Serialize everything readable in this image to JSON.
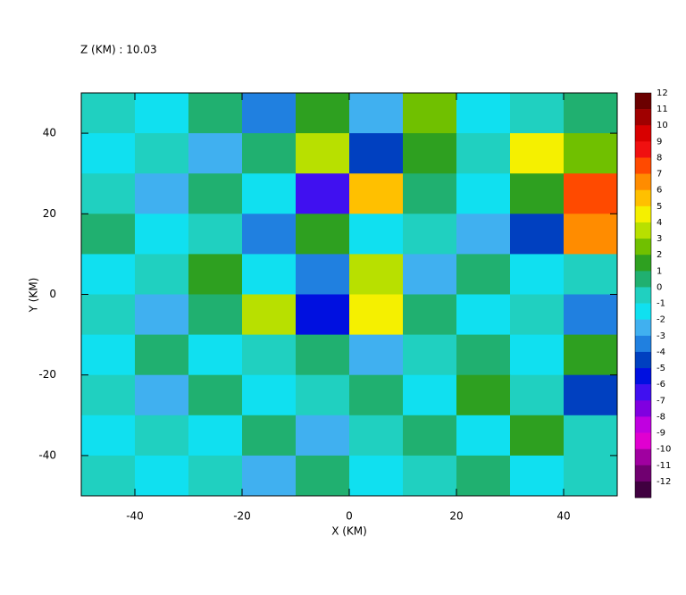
{
  "chart_data": {
    "type": "heatmap",
    "title": "Z (KM) : 10.03",
    "x_label": "X (KM)",
    "y_label": "Y (KM)",
    "xlim": [
      -50,
      50
    ],
    "ylim": [
      -50,
      50
    ],
    "xticks": [
      -40,
      -20,
      0,
      20,
      40
    ],
    "yticks": [
      -40,
      -20,
      0,
      20,
      40
    ],
    "z": [
      [
        0,
        -1,
        1,
        -3,
        2,
        -2,
        3,
        -1,
        0,
        1
      ],
      [
        -1,
        0,
        -2,
        1,
        4,
        -4,
        2,
        0,
        5,
        3
      ],
      [
        0,
        -2,
        1,
        -1,
        -6,
        6,
        1,
        -1,
        2,
        8
      ],
      [
        1,
        -1,
        0,
        -3,
        2,
        -1,
        0,
        -2,
        -4,
        7
      ],
      [
        -1,
        0,
        2,
        -1,
        -3,
        4,
        -2,
        1,
        -1,
        0
      ],
      [
        0,
        -2,
        1,
        4,
        -5,
        5,
        1,
        -1,
        0,
        -3
      ],
      [
        -1,
        1,
        -1,
        0,
        1,
        -2,
        0,
        1,
        -1,
        2
      ],
      [
        0,
        -2,
        1,
        -1,
        0,
        1,
        -1,
        2,
        0,
        -4
      ],
      [
        -1,
        0,
        -1,
        1,
        -2,
        0,
        1,
        -1,
        2,
        0
      ],
      [
        0,
        -1,
        0,
        -2,
        1,
        -1,
        0,
        1,
        -1,
        0
      ]
    ],
    "colorbar": {
      "levels": [
        12,
        11,
        10,
        9,
        8,
        7,
        6,
        5,
        4,
        3,
        2,
        1,
        0,
        -1,
        -2,
        -3,
        -4,
        -5,
        -6,
        -7,
        -8,
        -9,
        -10,
        -11,
        -12
      ],
      "colors": [
        "#6b0000",
        "#a00000",
        "#d80000",
        "#f01010",
        "#ff4a00",
        "#ff8c00",
        "#ffc000",
        "#f5f000",
        "#b8e000",
        "#70c000",
        "#2ea020",
        "#20b070",
        "#20d0c0",
        "#10e0f0",
        "#40b0f0",
        "#2080e0",
        "#0040c0",
        "#0010e0",
        "#4010f0",
        "#8000e0",
        "#c000e0",
        "#e000d0",
        "#a000a0",
        "#700070",
        "#400040"
      ]
    }
  }
}
